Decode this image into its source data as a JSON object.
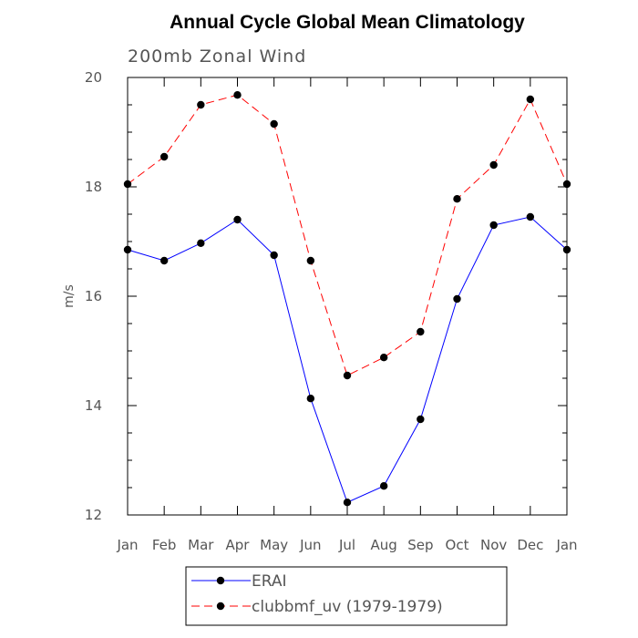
{
  "chart_data": {
    "type": "line",
    "title": "Annual Cycle Global Mean Climatology",
    "subtitle": "200mb Zonal Wind",
    "xlabel": "",
    "ylabel": "m/s",
    "categories": [
      "Jan",
      "Feb",
      "Mar",
      "Apr",
      "May",
      "Jun",
      "Jul",
      "Aug",
      "Sep",
      "Oct",
      "Nov",
      "Dec",
      "Jan"
    ],
    "ylim": [
      12,
      20
    ],
    "yticks": [
      12,
      14,
      16,
      18,
      20
    ],
    "series": [
      {
        "name": "ERAI",
        "color": "#0000ff",
        "dash": "solid",
        "values": [
          16.85,
          16.65,
          16.97,
          17.4,
          16.75,
          14.13,
          12.23,
          12.53,
          13.75,
          15.95,
          17.3,
          17.45,
          16.85
        ]
      },
      {
        "name": "clubbmf_uv (1979-1979)",
        "color": "#ff0000",
        "dash": "dashed",
        "values": [
          18.05,
          18.55,
          19.5,
          19.68,
          19.15,
          16.65,
          14.55,
          14.88,
          15.35,
          17.78,
          18.4,
          19.6,
          18.05
        ]
      }
    ],
    "legend_position": "bottom",
    "grid": false
  }
}
